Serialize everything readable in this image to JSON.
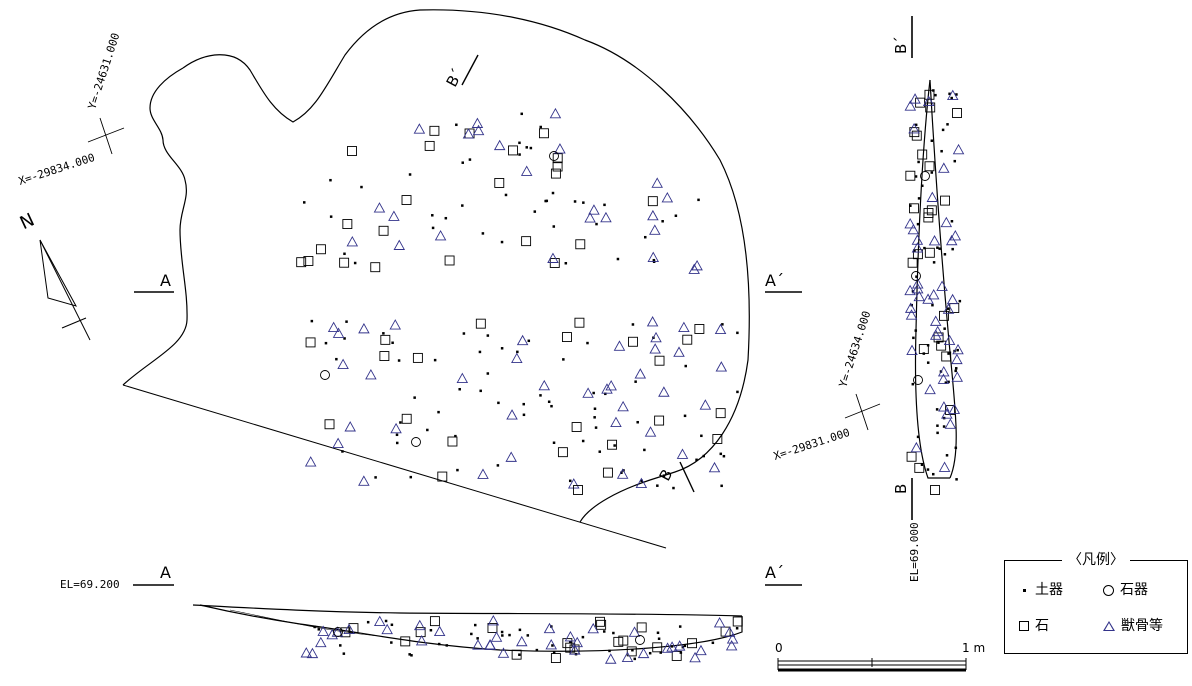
{
  "labels": {
    "north": "N",
    "section_a": "A",
    "section_a_prime": "A´",
    "section_b": "B",
    "section_b_prime": "B´",
    "coord_y_top": "Y=-24631.000",
    "coord_x_top": "X=-29834.000",
    "coord_y_right": "Y=-24634.000",
    "coord_x_right": "X=-29831.000",
    "el_a": "EL=69.200",
    "el_b": "EL=69.000",
    "scale_zero": "0",
    "scale_one": "1 m"
  },
  "legend": {
    "title": "〈凡例〉",
    "items": [
      {
        "symbol": "dot",
        "label": "土器"
      },
      {
        "symbol": "circle",
        "label": "石器"
      },
      {
        "symbol": "square",
        "label": "石"
      },
      {
        "symbol": "triangle",
        "label": "獣骨等"
      }
    ]
  },
  "colors": {
    "line": "#000000",
    "bone_symbol": "#33338a",
    "background": "#ffffff"
  }
}
